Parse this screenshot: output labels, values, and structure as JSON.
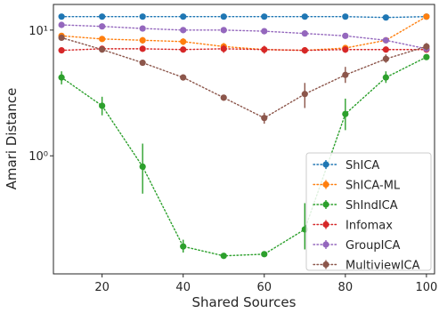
{
  "chart_data": {
    "type": "line",
    "title": "",
    "xlabel": "Shared Sources",
    "ylabel": "Amari Distance",
    "yscale": "log",
    "xlim": [
      8,
      102
    ],
    "ylim": [
      0.115,
      16
    ],
    "grid": false,
    "legend_position": "bottom-right",
    "x_ticks": [
      20,
      40,
      60,
      80,
      100
    ],
    "x_tick_labels": [
      "20",
      "40",
      "60",
      "80",
      "100"
    ],
    "y_ticks": [
      1,
      10
    ],
    "y_tick_labels": [
      "10⁰",
      "10¹"
    ],
    "x": [
      10,
      20,
      30,
      40,
      50,
      60,
      70,
      80,
      90,
      100
    ],
    "series": [
      {
        "name": "ShICA",
        "color": "#1f77b4",
        "values": [
          12.8,
          12.8,
          12.8,
          12.8,
          12.8,
          12.8,
          12.8,
          12.8,
          12.6,
          12.8
        ],
        "err_low": [
          12.6,
          12.6,
          12.6,
          12.6,
          12.6,
          12.6,
          12.6,
          12.6,
          12.4,
          12.6
        ],
        "err_high": [
          13.0,
          13.0,
          13.0,
          13.0,
          13.0,
          13.0,
          13.0,
          13.0,
          12.8,
          13.0
        ]
      },
      {
        "name": "ShICA-ML",
        "color": "#ff7f0e",
        "values": [
          9.0,
          8.5,
          8.3,
          8.1,
          7.4,
          7.0,
          6.9,
          7.2,
          8.3,
          12.8
        ],
        "err_low": [
          8.6,
          8.1,
          7.8,
          7.6,
          6.9,
          6.6,
          6.5,
          6.8,
          7.9,
          12.5
        ],
        "err_high": [
          9.4,
          8.9,
          8.8,
          8.6,
          7.9,
          7.4,
          7.3,
          7.6,
          8.7,
          13.1
        ]
      },
      {
        "name": "ShIndICA",
        "color": "#2ca02c",
        "values": [
          4.2,
          2.5,
          0.82,
          0.19,
          0.16,
          0.165,
          0.26,
          2.15,
          4.2,
          6.1
        ],
        "err_low": [
          3.7,
          2.1,
          0.5,
          0.17,
          0.155,
          0.158,
          0.18,
          1.6,
          3.8,
          5.8
        ],
        "err_high": [
          4.7,
          2.95,
          1.25,
          0.215,
          0.165,
          0.172,
          0.42,
          2.85,
          4.7,
          6.4
        ]
      },
      {
        "name": "Infomax",
        "color": "#d62728",
        "values": [
          6.9,
          7.1,
          7.1,
          7.0,
          7.1,
          7.0,
          6.9,
          7.0,
          7.0,
          7.0
        ],
        "err_low": [
          6.6,
          6.8,
          6.8,
          6.7,
          6.6,
          6.5,
          6.5,
          6.6,
          6.7,
          6.7
        ],
        "err_high": [
          7.2,
          7.4,
          7.4,
          7.3,
          7.6,
          7.5,
          7.3,
          7.4,
          7.3,
          7.3
        ]
      },
      {
        "name": "GroupICA",
        "color": "#9467bd",
        "values": [
          11.0,
          10.7,
          10.3,
          10.0,
          10.0,
          9.8,
          9.4,
          9.0,
          8.3,
          7.1
        ],
        "err_low": [
          10.8,
          10.5,
          10.1,
          9.8,
          9.8,
          9.6,
          9.2,
          8.8,
          8.1,
          6.9
        ],
        "err_high": [
          11.2,
          10.9,
          10.5,
          10.2,
          10.2,
          10.0,
          9.6,
          9.2,
          8.5,
          7.3
        ]
      },
      {
        "name": "MultiviewICA",
        "color": "#8c564b",
        "values": [
          8.7,
          7.0,
          5.5,
          4.2,
          2.9,
          2.0,
          3.1,
          4.4,
          5.9,
          7.4
        ],
        "err_low": [
          8.3,
          6.7,
          5.2,
          4.0,
          2.8,
          1.8,
          2.4,
          3.8,
          5.5,
          6.9
        ],
        "err_high": [
          9.1,
          7.3,
          5.8,
          4.4,
          3.0,
          2.2,
          3.8,
          5.1,
          6.4,
          7.9
        ]
      }
    ]
  }
}
